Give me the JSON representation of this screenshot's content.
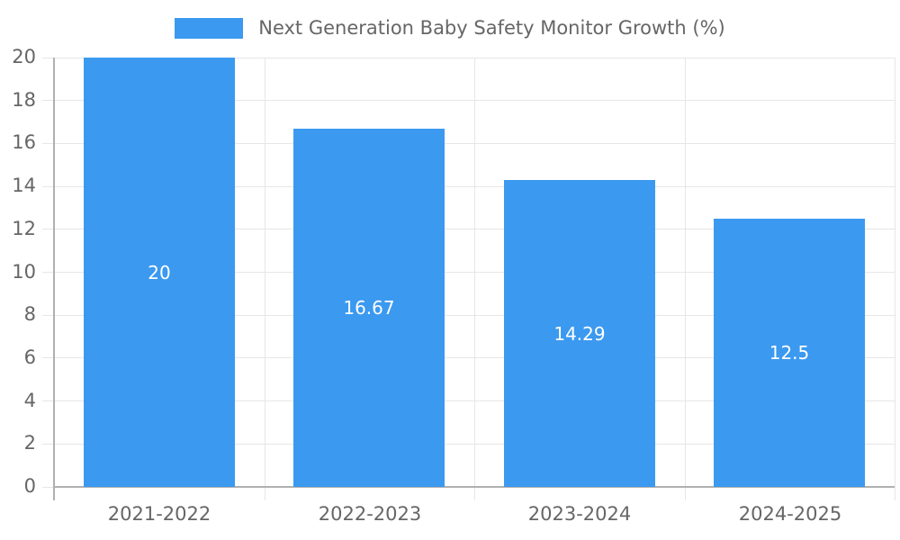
{
  "chart_data": {
    "type": "bar",
    "title": "Next Generation Baby Safety Monitor Growth (%)",
    "categories": [
      "2021-2022",
      "2022-2023",
      "2023-2024",
      "2024-2025"
    ],
    "values": [
      20,
      16.67,
      14.29,
      12.5
    ],
    "bar_labels": [
      "20",
      "16.67",
      "14.29",
      "12.5"
    ],
    "series": [
      {
        "name": "Next Generation Baby Safety Monitor Growth (%)",
        "values": [
          20,
          16.67,
          14.29,
          12.5
        ]
      }
    ],
    "xlabel": "",
    "ylabel": "",
    "ylim": [
      0,
      20
    ],
    "yticks": [
      0,
      2,
      4,
      6,
      8,
      10,
      12,
      14,
      16,
      18,
      20
    ],
    "grid": true,
    "legend_position": "top-center",
    "bar_label_position": "center-inside",
    "colors": {
      "bar": "#3B99F0",
      "grid": "#e6e6e6",
      "axis": "#b0b0b0",
      "tick_text": "#666666",
      "legend_text": "#666666",
      "bar_label_text": "#ffffff",
      "background": "#ffffff"
    }
  }
}
